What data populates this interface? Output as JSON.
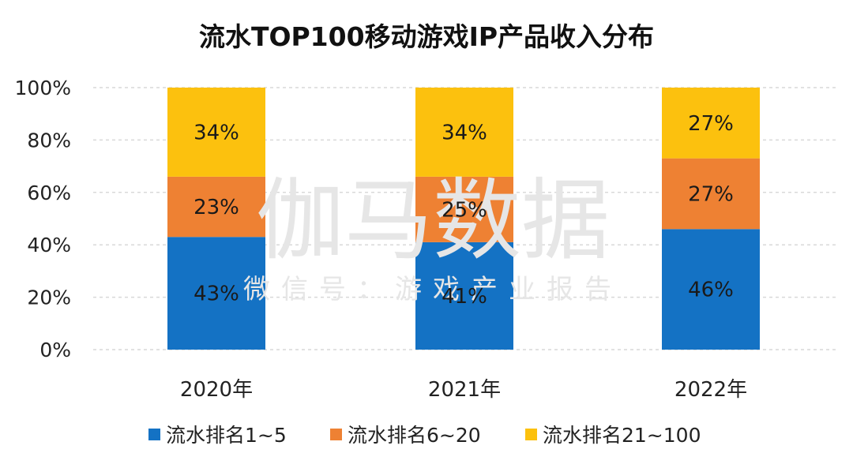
{
  "watermark": {
    "main": "伽马数据",
    "sub": "微信号：游戏产业报告"
  },
  "chart_data": {
    "type": "bar",
    "stacked": true,
    "title": "流水TOP100移动游戏IP产品收入分布",
    "categories": [
      "2020年",
      "2021年",
      "2022年"
    ],
    "ylim": [
      0,
      100
    ],
    "yticks": [
      "0%",
      "20%",
      "40%",
      "60%",
      "80%",
      "100%"
    ],
    "grid": true,
    "legend_position": "bottom",
    "series": [
      {
        "name": "流水排名1~5",
        "color": "#1472C4",
        "values": [
          43,
          41,
          46
        ],
        "labels": [
          "43%",
          "41%",
          "46%"
        ]
      },
      {
        "name": "流水排名6~20",
        "color": "#EE8133",
        "values": [
          23,
          25,
          27
        ],
        "labels": [
          "23%",
          "25%",
          "27%"
        ]
      },
      {
        "name": "流水排名21~100",
        "color": "#FCC10E",
        "values": [
          34,
          34,
          27
        ],
        "labels": [
          "34%",
          "34%",
          "27%"
        ]
      }
    ]
  }
}
